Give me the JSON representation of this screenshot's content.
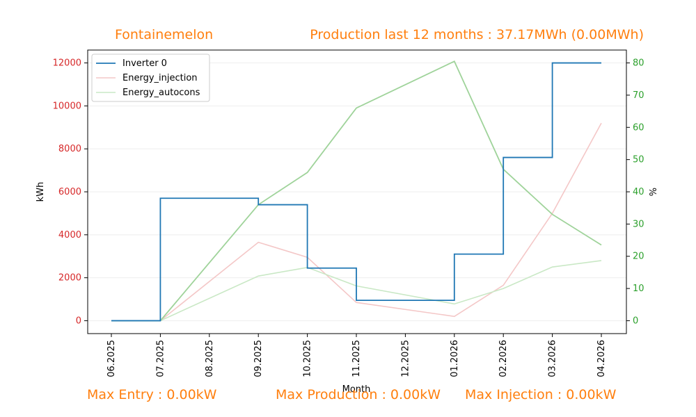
{
  "header": {
    "site_name": "Fontainemelon",
    "production_summary": "Production last 12 months : 37.17MWh (0.00MWh)"
  },
  "footer": {
    "max_entry": "Max Entry : 0.00kW",
    "max_production": "Max Production : 0.00kW",
    "max_injection": "Max Injection : 0.00kW"
  },
  "colors": {
    "accent": "#ff7f0e",
    "left_axis": "#d62728",
    "right_axis": "#2ca02c",
    "inverter": "#1f77b4",
    "injection": "#f4c7c7",
    "autocons": "#9fd39a",
    "autocons_light": "#c9e8c5"
  },
  "chart_data": {
    "type": "line",
    "xlabel": "Month",
    "ylabel_left": "kWh",
    "ylabel_right": "%",
    "categories": [
      "06.2025",
      "07.2025",
      "08.2025",
      "09.2025",
      "10.2025",
      "11.2025",
      "12.2025",
      "01.2026",
      "02.2026",
      "03.2026",
      "04.2026"
    ],
    "ylim_left": [
      -600,
      12600
    ],
    "yticks_left": [
      0,
      2000,
      4000,
      6000,
      8000,
      10000,
      12000
    ],
    "ylim_right": [
      -4,
      84
    ],
    "yticks_right": [
      0,
      10,
      20,
      30,
      40,
      50,
      60,
      70,
      80
    ],
    "legend_position": "top-left",
    "grid": true,
    "series": [
      {
        "name": "Inverter 0",
        "axis": "left",
        "style": "step",
        "x": [
          "06.2025",
          "07.2025",
          "09.2025",
          "10.2025",
          "11.2025",
          "01.2026",
          "02.2026",
          "03.2026",
          "04.2026"
        ],
        "values": [
          0,
          5700,
          5400,
          2450,
          950,
          3100,
          7600,
          12000,
          12000
        ]
      },
      {
        "name": "Energy_injection",
        "axis": "left",
        "style": "line",
        "x": [
          "06.2025",
          "07.2025",
          "09.2025",
          "10.2025",
          "11.2025",
          "01.2026",
          "02.2026",
          "03.2026",
          "04.2026"
        ],
        "values": [
          0,
          0,
          3650,
          2950,
          850,
          200,
          1650,
          5000,
          9200
        ]
      },
      {
        "name": "Energy_autocons",
        "axis": "left",
        "style": "line",
        "x": [
          "06.2025",
          "07.2025",
          "09.2025",
          "10.2025",
          "11.2025",
          "01.2026",
          "02.2026",
          "03.2026",
          "04.2026"
        ],
        "values": [
          0,
          0,
          2080,
          2480,
          1620,
          780,
          1500,
          2500,
          2800
        ]
      },
      {
        "name": "",
        "axis": "right",
        "style": "line",
        "x": [
          "06.2025",
          "07.2025",
          "09.2025",
          "10.2025",
          "11.2025",
          "01.2026",
          "02.2026",
          "03.2026",
          "04.2026"
        ],
        "values": [
          0,
          0,
          36,
          46,
          66,
          80.5,
          47,
          33,
          23.5
        ]
      }
    ]
  }
}
